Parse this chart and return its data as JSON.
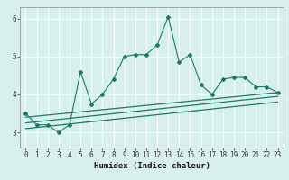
{
  "xlabel": "Humidex (Indice chaleur)",
  "x_values": [
    0,
    1,
    2,
    3,
    4,
    5,
    6,
    7,
    8,
    9,
    10,
    11,
    12,
    13,
    14,
    15,
    16,
    17,
    18,
    19,
    20,
    21,
    22,
    23
  ],
  "line1": [
    3.5,
    3.2,
    3.2,
    3.0,
    3.2,
    4.6,
    3.75,
    4.0,
    4.4,
    5.0,
    5.05,
    5.05,
    5.3,
    6.05,
    4.85,
    5.05,
    4.25,
    4.0,
    4.4,
    4.45,
    4.45,
    4.2,
    4.2,
    4.05
  ],
  "line2_x": [
    0,
    23
  ],
  "line2_y": [
    3.4,
    4.05
  ],
  "line3_x": [
    0,
    23
  ],
  "line3_y": [
    3.25,
    3.95
  ],
  "line4_x": [
    0,
    23
  ],
  "line4_y": [
    3.1,
    3.8
  ],
  "ylim": [
    2.6,
    6.3
  ],
  "xlim": [
    -0.5,
    23.5
  ],
  "yticks": [
    3,
    4,
    5,
    6
  ],
  "xticks": [
    0,
    1,
    2,
    3,
    4,
    5,
    6,
    7,
    8,
    9,
    10,
    11,
    12,
    13,
    14,
    15,
    16,
    17,
    18,
    19,
    20,
    21,
    22,
    23
  ],
  "line_color": "#1a7a6a",
  "bg_color": "#d8f0ec",
  "grid_color": "#ffffff",
  "tick_label_fontsize": 5.5,
  "xlabel_fontsize": 6.5
}
